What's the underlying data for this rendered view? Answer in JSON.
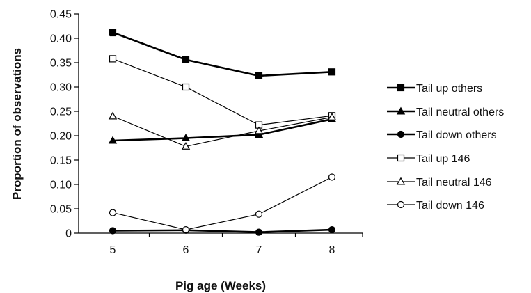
{
  "chart_data": {
    "type": "line",
    "xlabel": "Pig age (Weeks)",
    "ylabel": "Proportion of observations",
    "x": [
      5,
      6,
      7,
      8
    ],
    "x_tick_labels": [
      "5",
      "6",
      "7",
      "8"
    ],
    "ylim": [
      0,
      0.45
    ],
    "y_ticks": [
      0,
      0.05,
      0.1,
      0.15,
      0.2,
      0.25,
      0.3,
      0.35,
      0.4,
      0.45
    ],
    "y_tick_labels": [
      "0",
      "0.05",
      "0.10",
      "0.15",
      "0.20",
      "0.25",
      "0.30",
      "0.35",
      "0.40",
      "0.45"
    ],
    "grid": false,
    "legend_position": "right",
    "series": [
      {
        "name": "Tail up others",
        "values": [
          0.412,
          0.356,
          0.323,
          0.331
        ],
        "marker": "square",
        "filled": true,
        "weight": "heavy",
        "error": [
          0.007,
          0.005,
          0.005,
          0.006
        ]
      },
      {
        "name": "Tail neutral others",
        "values": [
          0.19,
          0.195,
          0.202,
          0.234
        ],
        "marker": "triangle",
        "filled": true,
        "weight": "heavy"
      },
      {
        "name": "Tail down others",
        "values": [
          0.005,
          0.006,
          0.002,
          0.007
        ],
        "marker": "circle",
        "filled": true,
        "weight": "heavy"
      },
      {
        "name": "Tail up 146",
        "values": [
          0.358,
          0.3,
          0.222,
          0.241
        ],
        "marker": "square",
        "filled": false,
        "weight": "light"
      },
      {
        "name": "Tail neutral 146",
        "values": [
          0.24,
          0.178,
          0.21,
          0.238
        ],
        "marker": "triangle",
        "filled": false,
        "weight": "light"
      },
      {
        "name": "Tail down 146",
        "values": [
          0.042,
          0.007,
          0.039,
          0.115
        ],
        "marker": "circle",
        "filled": false,
        "weight": "light"
      }
    ]
  }
}
